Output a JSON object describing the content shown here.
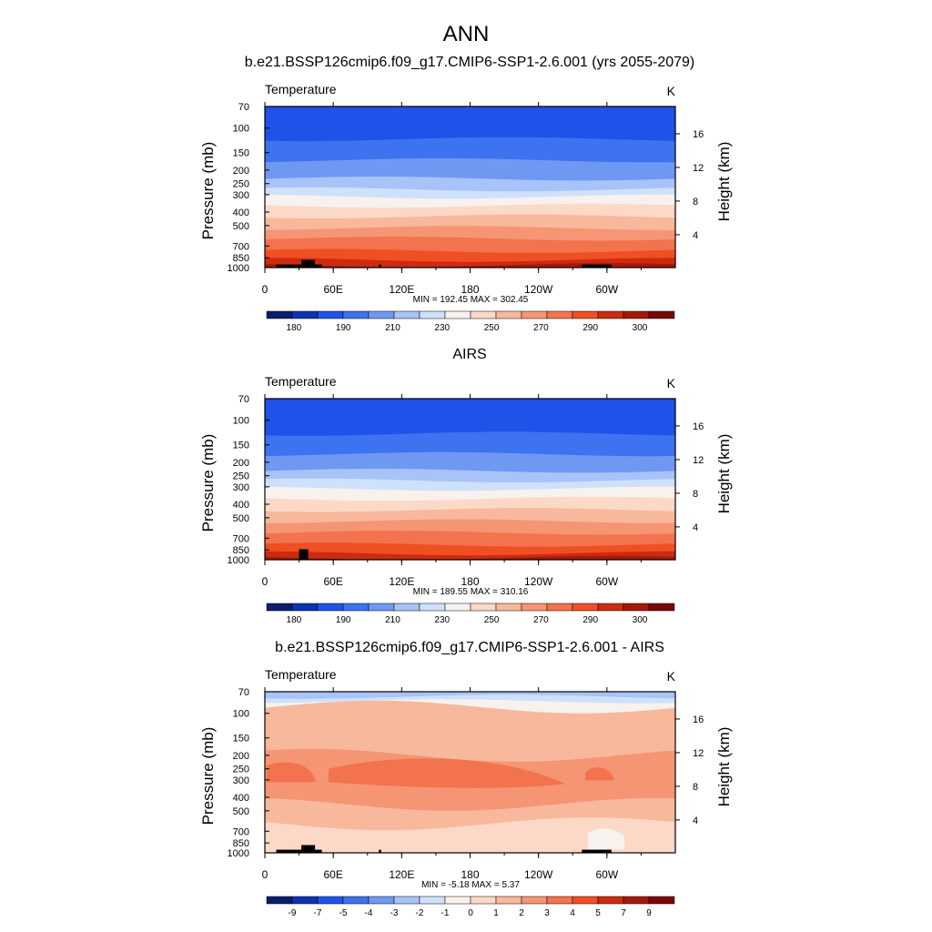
{
  "figure_title": "ANN",
  "chart_data": [
    {
      "type": "heatmap",
      "title": "b.e21.BSSP126cmip6.f09_g17.CMIP6-SSP1-2.6.001 (yrs 2055-2079)",
      "variable": "Temperature",
      "units": "K",
      "ylabel": "Pressure (mb)",
      "ylabel_right": "Height (km)",
      "x_ticks": [
        "0",
        "60E",
        "120E",
        "180",
        "120W",
        "60W"
      ],
      "y_ticks": [
        "70",
        "100",
        "150",
        "200",
        "250",
        "300",
        "400",
        "500",
        "700",
        "850",
        "1000"
      ],
      "height_ticks": [
        "16",
        "12",
        "8",
        "4"
      ],
      "min_max_text": "MIN = 192.45  MAX = 302.45",
      "colorbar_labels": [
        "180",
        "190",
        "210",
        "230",
        "250",
        "270",
        "290",
        "300"
      ],
      "colorbar_colors": [
        "#0a1d6e",
        "#0b33b3",
        "#1f52e8",
        "#3d72f0",
        "#6f98f3",
        "#a7c3f7",
        "#cfe1fa",
        "#f8f2ee",
        "#fbd9c6",
        "#f8b89c",
        "#f59574",
        "#f2734d",
        "#f04f24",
        "#cc2b10",
        "#a6190a",
        "#7a0606"
      ],
      "bands": [
        {
          "label": "70-120 mb",
          "color_index": 2
        },
        {
          "label": "120-170 mb",
          "color_index": 3
        },
        {
          "label": "170-230 mb",
          "color_index": 4
        },
        {
          "label": "230-275 mb",
          "color_index": 5
        },
        {
          "label": "275-310 mb",
          "color_index": 6
        },
        {
          "label": "310-360 mb",
          "color_index": 7
        },
        {
          "label": "360-430 mb",
          "color_index": 8
        },
        {
          "label": "430-520 mb",
          "color_index": 9
        },
        {
          "label": "520-620 mb",
          "color_index": 10
        },
        {
          "label": "620-760 mb",
          "color_index": 11
        },
        {
          "label": "760-880 mb",
          "color_index": 12
        },
        {
          "label": "880-960 mb",
          "color_index": 13
        },
        {
          "label": "960-1000 mb",
          "color_index": 14
        }
      ]
    },
    {
      "type": "heatmap",
      "title": "AIRS",
      "variable": "Temperature",
      "units": "K",
      "ylabel": "Pressure (mb)",
      "ylabel_right": "Height (km)",
      "x_ticks": [
        "0",
        "60E",
        "120E",
        "180",
        "120W",
        "60W"
      ],
      "y_ticks": [
        "70",
        "100",
        "150",
        "200",
        "250",
        "300",
        "400",
        "500",
        "700",
        "850",
        "1000"
      ],
      "height_ticks": [
        "16",
        "12",
        "8",
        "4"
      ],
      "min_max_text": "MIN = 189.55  MAX = 310.16",
      "colorbar_labels": [
        "180",
        "190",
        "210",
        "230",
        "250",
        "270",
        "290",
        "300"
      ],
      "colorbar_colors": [
        "#0a1d6e",
        "#0b33b3",
        "#1f52e8",
        "#3d72f0",
        "#6f98f3",
        "#a7c3f7",
        "#cfe1fa",
        "#f8f2ee",
        "#fbd9c6",
        "#f8b89c",
        "#f59574",
        "#f2734d",
        "#f04f24",
        "#cc2b10",
        "#a6190a",
        "#7a0606"
      ],
      "bands": [
        {
          "label": "70-125 mb",
          "color_index": 2
        },
        {
          "label": "125-175 mb",
          "color_index": 3
        },
        {
          "label": "175-230 mb",
          "color_index": 4
        },
        {
          "label": "230-270 mb",
          "color_index": 5
        },
        {
          "label": "270-310 mb",
          "color_index": 6
        },
        {
          "label": "310-365 mb",
          "color_index": 7
        },
        {
          "label": "365-440 mb",
          "color_index": 8
        },
        {
          "label": "440-530 mb",
          "color_index": 9
        },
        {
          "label": "530-640 mb",
          "color_index": 10
        },
        {
          "label": "640-780 mb",
          "color_index": 11
        },
        {
          "label": "780-900 mb",
          "color_index": 12
        },
        {
          "label": "900-970 mb",
          "color_index": 13
        },
        {
          "label": "970-1000 mb",
          "color_index": 14
        }
      ]
    },
    {
      "type": "heatmap",
      "title": "b.e21.BSSP126cmip6.f09_g17.CMIP6-SSP1-2.6.001 - AIRS",
      "variable": "Temperature",
      "units": "K",
      "ylabel": "Pressure (mb)",
      "ylabel_right": "Height (km)",
      "x_ticks": [
        "0",
        "60E",
        "120E",
        "180",
        "120W",
        "60W"
      ],
      "y_ticks": [
        "70",
        "100",
        "150",
        "200",
        "250",
        "300",
        "400",
        "500",
        "700",
        "850",
        "1000"
      ],
      "height_ticks": [
        "16",
        "12",
        "8",
        "4"
      ],
      "min_max_text": "MIN =  -5.18  MAX =   5.37",
      "colorbar_labels": [
        "-9",
        "-7",
        "-5",
        "-4",
        "-3",
        "-2",
        "-1",
        "0",
        "1",
        "2",
        "3",
        "4",
        "5",
        "7",
        "9"
      ],
      "colorbar_colors": [
        "#0a1d6e",
        "#0b33b3",
        "#1f52e8",
        "#3d72f0",
        "#6f98f3",
        "#a7c3f7",
        "#cfe1fa",
        "#f8f2ee",
        "#fbd9c6",
        "#f8b89c",
        "#f59574",
        "#f2734d",
        "#f04f24",
        "#cc2b10",
        "#a6190a",
        "#7a0606"
      ],
      "bands": [
        {
          "label": "70-76 mb",
          "color_index": 5
        },
        {
          "label": "76-82 mb",
          "color_index": 6
        },
        {
          "label": "82-90 mb",
          "color_index": 7
        },
        {
          "label": "90-200 mb",
          "color_index": 9
        },
        {
          "label": "200-450 mb",
          "color_index": 10
        },
        {
          "label": "450-620 mb",
          "color_index": 9
        },
        {
          "label": "620-1000 mb",
          "color_index": 8
        }
      ]
    }
  ]
}
